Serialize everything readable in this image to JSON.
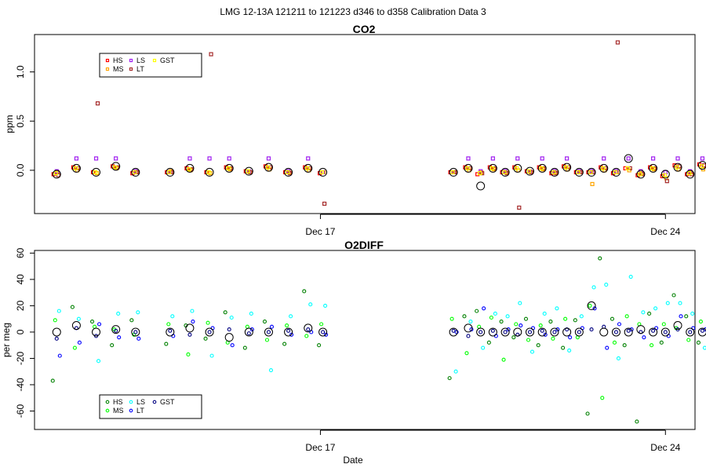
{
  "page_title": "LMG   12-13A    121211 to 121223    d346 to d358   Calibration Data 3",
  "x_axis": {
    "label": "Date",
    "range_days": [
      11.2,
      24.6
    ],
    "ticks": [
      {
        "day": 17,
        "label": "Dec 17"
      },
      {
        "day": 24,
        "label": "Dec 24"
      }
    ]
  },
  "species": [
    {
      "key": "HS",
      "label": "HS",
      "co2_color": "#ff0000",
      "o2_color": "#008000"
    },
    {
      "key": "MS",
      "label": "MS",
      "co2_color": "#ffa500",
      "o2_color": "#00ff00"
    },
    {
      "key": "LS",
      "label": "LS",
      "co2_color": "#a020f0",
      "o2_color": "#00ffff"
    },
    {
      "key": "LT",
      "label": "LT",
      "co2_color": "#a52a2a",
      "o2_color": "#0000ff"
    },
    {
      "key": "GST",
      "label": "GST",
      "co2_color": "#ffff00",
      "o2_color": "#000080"
    }
  ],
  "chart_data": [
    {
      "type": "scatter",
      "id": "co2",
      "title": "CO2",
      "xlabel": "",
      "ylabel": "ppm",
      "ylim": [
        -0.44,
        1.38
      ],
      "yticks": [
        {
          "v": 0.0,
          "label": "0.0"
        },
        {
          "v": 0.5,
          "label": "0.5"
        },
        {
          "v": 1.0,
          "label": "1.0"
        }
      ],
      "legend_position": "top-left",
      "groups": [
        {
          "x": 11.65,
          "v": [
            -0.04,
            -0.02,
            -0.01,
            -0.05,
            -0.03
          ],
          "c": -0.04
        },
        {
          "x": 12.05,
          "v": [
            0.03,
            0.0,
            0.12,
            0.02,
            0.02
          ],
          "c": 0.02
        },
        {
          "x": 12.45,
          "v": [
            -0.02,
            -0.03,
            0.12,
            0.68,
            -0.02
          ],
          "c": -0.02
        },
        {
          "x": 12.85,
          "v": [
            0.04,
            0.02,
            0.12,
            0.03,
            0.03
          ],
          "c": 0.04
        },
        {
          "x": 13.25,
          "v": [
            -0.03,
            -0.02,
            -0.01,
            -0.02,
            -0.02
          ],
          "c": -0.02
        },
        {
          "x": 13.95,
          "v": [
            -0.02,
            -0.01,
            -0.02,
            -0.02,
            -0.02
          ],
          "c": -0.02
        },
        {
          "x": 14.35,
          "v": [
            0.02,
            0.0,
            0.12,
            0.01,
            0.01
          ],
          "c": 0.02
        },
        {
          "x": 14.75,
          "v": [
            -0.02,
            -0.03,
            0.12,
            1.18,
            -0.02
          ],
          "c": -0.02
        },
        {
          "x": 15.15,
          "v": [
            0.03,
            0.01,
            0.12,
            0.02,
            0.02
          ],
          "c": 0.02
        },
        {
          "x": 15.55,
          "v": [
            -0.01,
            -0.02,
            -0.01,
            -0.02,
            -0.01
          ],
          "c": -0.01
        },
        {
          "x": 15.95,
          "v": [
            0.04,
            0.01,
            0.12,
            0.03,
            0.03
          ],
          "c": 0.03
        },
        {
          "x": 16.35,
          "v": [
            -0.02,
            -0.02,
            -0.01,
            -0.03,
            -0.02
          ],
          "c": -0.02
        },
        {
          "x": 16.75,
          "v": [
            0.03,
            0.0,
            0.12,
            0.02,
            0.02
          ],
          "c": 0.02
        },
        {
          "x": 17.05,
          "v": [
            -0.03,
            -0.02,
            -0.02,
            -0.34,
            -0.02
          ],
          "c": -0.02
        },
        {
          "x": 19.7,
          "v": [
            -0.02,
            -0.02,
            -0.02,
            -0.02,
            -0.02
          ],
          "c": -0.02
        },
        {
          "x": 20.0,
          "v": [
            0.03,
            0.0,
            0.12,
            0.02,
            0.02
          ],
          "c": 0.02
        },
        {
          "x": 20.25,
          "v": [
            -0.04,
            -0.02,
            -0.01,
            -0.03,
            -0.03
          ],
          "c": -0.16
        },
        {
          "x": 20.5,
          "v": [
            0.03,
            0.01,
            0.12,
            0.02,
            0.02
          ],
          "c": 0.02
        },
        {
          "x": 20.75,
          "v": [
            -0.02,
            -0.02,
            -0.01,
            -0.03,
            -0.02
          ],
          "c": -0.02
        },
        {
          "x": 21.0,
          "v": [
            0.03,
            0.0,
            0.12,
            -0.38,
            0.02
          ],
          "c": 0.02
        },
        {
          "x": 21.25,
          "v": [
            -0.01,
            -0.02,
            -0.01,
            -0.02,
            -0.01
          ],
          "c": -0.01
        },
        {
          "x": 21.5,
          "v": [
            0.03,
            0.01,
            0.12,
            0.02,
            0.02
          ],
          "c": 0.02
        },
        {
          "x": 21.75,
          "v": [
            -0.03,
            -0.02,
            -0.01,
            -0.03,
            -0.02
          ],
          "c": -0.02
        },
        {
          "x": 22.0,
          "v": [
            0.04,
            0.01,
            0.12,
            0.03,
            0.03
          ],
          "c": 0.03
        },
        {
          "x": 22.25,
          "v": [
            -0.02,
            -0.02,
            -0.01,
            -0.02,
            -0.02
          ],
          "c": -0.02
        },
        {
          "x": 22.5,
          "v": [
            -0.02,
            -0.14,
            -0.01,
            -0.02,
            -0.02
          ],
          "c": -0.02
        },
        {
          "x": 22.75,
          "v": [
            0.03,
            0.0,
            0.12,
            0.02,
            0.02
          ],
          "c": 0.02
        },
        {
          "x": 23.0,
          "v": [
            -0.03,
            -0.02,
            -0.01,
            1.3,
            -0.02
          ],
          "c": -0.02
        },
        {
          "x": 23.25,
          "v": [
            0.02,
            0.0,
            0.12,
            0.02,
            0.02
          ],
          "c": 0.12
        },
        {
          "x": 23.5,
          "v": [
            -0.05,
            -0.03,
            -0.01,
            -0.04,
            -0.04
          ],
          "c": -0.04
        },
        {
          "x": 23.75,
          "v": [
            0.03,
            0.01,
            0.12,
            0.02,
            0.02
          ],
          "c": 0.02
        },
        {
          "x": 24.0,
          "v": [
            -0.06,
            -0.08,
            -0.02,
            -0.11,
            -0.05
          ],
          "c": -0.04
        },
        {
          "x": 24.25,
          "v": [
            0.05,
            0.01,
            0.12,
            0.04,
            0.03
          ],
          "c": 0.03
        },
        {
          "x": 24.5,
          "v": [
            -0.04,
            -0.02,
            -0.01,
            -0.04,
            -0.03
          ],
          "c": -0.04
        },
        {
          "x": 24.75,
          "v": [
            0.06,
            0.01,
            0.12,
            0.05,
            0.04
          ],
          "c": 0.05
        },
        {
          "x": 25.0,
          "v": [
            -0.09,
            -0.06,
            -0.03,
            -0.24,
            -0.05
          ],
          "c": -0.26
        },
        {
          "x": 25.2,
          "v": [
            -0.06,
            0.0,
            0.06,
            -0.05,
            -0.04
          ],
          "c": 0.19
        },
        {
          "x": 25.45,
          "v": [
            0.04,
            0.02,
            0.12,
            0.03,
            0.02
          ],
          "c": -0.05
        }
      ],
      "extra_open": [
        {
          "x": 25.18,
          "v": -0.24
        },
        {
          "x": 25.35,
          "v": -0.02
        }
      ]
    },
    {
      "type": "scatter",
      "id": "o2",
      "title": "O2DIFF",
      "xlabel": "Date",
      "ylabel": "per meg",
      "ylim": [
        -74,
        62
      ],
      "yticks": [
        {
          "v": -60,
          "label": "-60"
        },
        {
          "v": -40,
          "label": "-40"
        },
        {
          "v": -20,
          "label": "-20"
        },
        {
          "v": 0,
          "label": "0"
        },
        {
          "v": 20,
          "label": "20"
        },
        {
          "v": 40,
          "label": "40"
        },
        {
          "v": 60,
          "label": "60"
        }
      ],
      "legend_position": "bottom-left",
      "groups": [
        {
          "x": 11.65,
          "v": [
            -37,
            9,
            16,
            -18,
            -5
          ],
          "c": 0
        },
        {
          "x": 12.05,
          "v": [
            19,
            -12,
            10,
            -8,
            3
          ],
          "c": 5
        },
        {
          "x": 12.45,
          "v": [
            8,
            4,
            -22,
            6,
            -3
          ],
          "c": 0
        },
        {
          "x": 12.85,
          "v": [
            -10,
            2,
            14,
            -4,
            1
          ],
          "c": 2
        },
        {
          "x": 13.25,
          "v": [
            9,
            -2,
            15,
            -5,
            0
          ],
          "c": 0
        },
        {
          "x": 13.95,
          "v": [
            -9,
            6,
            12,
            -3,
            1
          ],
          "c": 0
        },
        {
          "x": 14.35,
          "v": [
            5,
            -17,
            16,
            8,
            -2
          ],
          "c": 3
        },
        {
          "x": 14.75,
          "v": [
            -5,
            7,
            -18,
            3,
            0
          ],
          "c": 0
        },
        {
          "x": 15.15,
          "v": [
            15,
            -8,
            11,
            -10,
            2
          ],
          "c": -4
        },
        {
          "x": 15.55,
          "v": [
            -12,
            4,
            14,
            2,
            -1
          ],
          "c": 0
        },
        {
          "x": 15.95,
          "v": [
            8,
            -6,
            -29,
            4,
            0
          ],
          "c": 0
        },
        {
          "x": 16.35,
          "v": [
            -9,
            5,
            12,
            -2,
            1
          ],
          "c": 0
        },
        {
          "x": 16.75,
          "v": [
            31,
            -3,
            21,
            0,
            2
          ],
          "c": 3
        },
        {
          "x": 17.05,
          "v": [
            -10,
            6,
            20,
            -2,
            0
          ],
          "c": 0
        },
        {
          "x": 19.7,
          "v": [
            -35,
            10,
            -30,
            0,
            1
          ],
          "c": 0
        },
        {
          "x": 20.0,
          "v": [
            12,
            -16,
            8,
            2,
            -3
          ],
          "c": 3
        },
        {
          "x": 20.25,
          "v": [
            16,
            4,
            -12,
            18,
            0
          ],
          "c": 0
        },
        {
          "x": 20.5,
          "v": [
            -8,
            11,
            14,
            -3,
            1
          ],
          "c": 0
        },
        {
          "x": 20.75,
          "v": [
            8,
            -21,
            12,
            2,
            0
          ],
          "c": 0
        },
        {
          "x": 21.0,
          "v": [
            -4,
            6,
            22,
            5,
            -2
          ],
          "c": 0
        },
        {
          "x": 21.25,
          "v": [
            10,
            -6,
            -15,
            3,
            0
          ],
          "c": 0
        },
        {
          "x": 21.5,
          "v": [
            -10,
            5,
            14,
            -2,
            1
          ],
          "c": 0
        },
        {
          "x": 21.75,
          "v": [
            8,
            -5,
            18,
            2,
            0
          ],
          "c": 0
        },
        {
          "x": 22.0,
          "v": [
            -12,
            10,
            -14,
            -4,
            2
          ],
          "c": 0
        },
        {
          "x": 22.25,
          "v": [
            9,
            -4,
            12,
            3,
            0
          ],
          "c": 0
        },
        {
          "x": 22.5,
          "v": [
            -62,
            20,
            34,
            18,
            2
          ],
          "c": 20
        },
        {
          "x": 22.75,
          "v": [
            56,
            -50,
            36,
            -12,
            4
          ],
          "c": 0
        },
        {
          "x": 23.0,
          "v": [
            10,
            -8,
            -20,
            6,
            0
          ],
          "c": 0
        },
        {
          "x": 23.25,
          "v": [
            -10,
            12,
            42,
            2,
            1
          ],
          "c": 0
        },
        {
          "x": 23.5,
          "v": [
            -68,
            6,
            15,
            -4,
            0
          ],
          "c": 2
        },
        {
          "x": 23.75,
          "v": [
            14,
            -10,
            18,
            3,
            1
          ],
          "c": 0
        },
        {
          "x": 24.0,
          "v": [
            -8,
            6,
            22,
            -3,
            0
          ],
          "c": 0
        },
        {
          "x": 24.25,
          "v": [
            28,
            3,
            22,
            12,
            2
          ],
          "c": 5
        },
        {
          "x": 24.5,
          "v": [
            12,
            -6,
            14,
            3,
            0
          ],
          "c": 0
        },
        {
          "x": 24.75,
          "v": [
            -8,
            8,
            -12,
            2,
            1
          ],
          "c": 0
        },
        {
          "x": 25.0,
          "v": [
            -18,
            10,
            20,
            10,
            0
          ],
          "c": -15
        },
        {
          "x": 25.2,
          "v": [
            8,
            20,
            -6,
            10,
            2
          ],
          "c": 11
        },
        {
          "x": 25.45,
          "v": [
            -24,
            10,
            12,
            -25,
            2
          ],
          "c": 0
        }
      ],
      "extra_open": [
        {
          "x": 25.15,
          "v": -7
        },
        {
          "x": 25.35,
          "v": -2
        },
        {
          "x": 25.45,
          "v": 4
        }
      ]
    }
  ]
}
